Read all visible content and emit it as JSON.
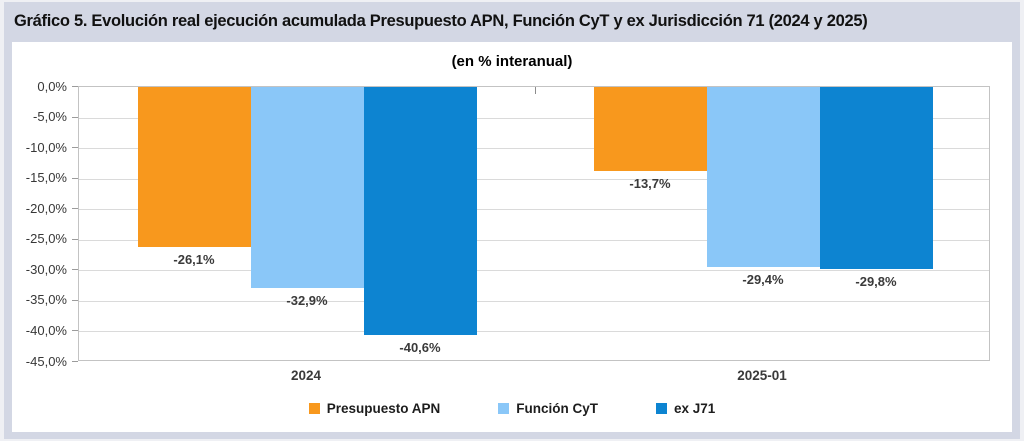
{
  "window": {
    "title": "Gráfico 5. Evolución real ejecución acumulada Presupuesto APN, Función CyT y ex Jurisdicción 71 (2024 y 2025)"
  },
  "chart_data": {
    "type": "bar",
    "title": "Gráfico 5. Evolución real ejecución acumulada Presupuesto APN, Función CyT y ex Jurisdicción 71 (2024 y 2025)",
    "subtitle": "(en % interanual)",
    "categories": [
      "2024",
      "2025-01"
    ],
    "series": [
      {
        "name": "Presupuesto APN",
        "color": "#F8981D",
        "values": [
          -26.1,
          -13.7
        ],
        "labels": [
          "-26,1%",
          "-13,7%"
        ]
      },
      {
        "name": "Función CyT",
        "color": "#8AC7F8",
        "values": [
          -32.9,
          -29.4
        ],
        "labels": [
          "-32,9%",
          "-29,4%"
        ]
      },
      {
        "name": "ex J71",
        "color": "#0D84D1",
        "values": [
          -40.6,
          -29.8
        ],
        "labels": [
          "-40,6%",
          "-29,8%"
        ]
      }
    ],
    "ylabel": "",
    "xlabel": "",
    "ylim": [
      -45,
      0
    ],
    "ytick_step": 5,
    "yticks": [
      "0,0%",
      "-5,0%",
      "-10,0%",
      "-15,0%",
      "-20,0%",
      "-25,0%",
      "-30,0%",
      "-35,0%",
      "-40,0%",
      "-45,0%"
    ],
    "grid": "horizontal",
    "legend_position": "bottom"
  },
  "colors": {
    "frame": "#d3d7e4",
    "panel": "#ffffff",
    "grid": "#dadada",
    "plot_border": "#c3c3c3"
  }
}
